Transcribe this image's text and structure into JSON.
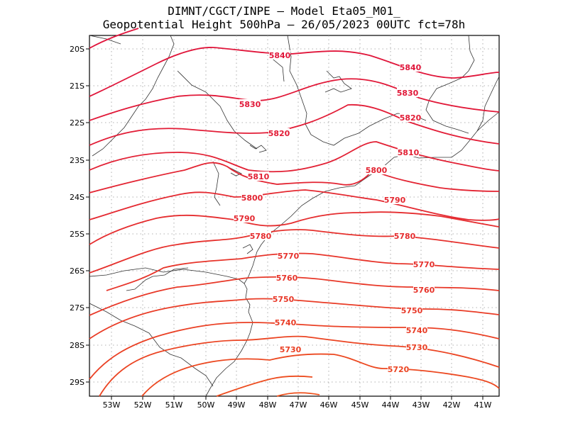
{
  "title": {
    "line1": "DIMNT/CGCT/INPE –  Model Eta05_M01_",
    "line2": "Geopotential Height 500hPa –  26/05/2023 00UTC fct=78h"
  },
  "map": {
    "lon_range": [
      -53.6,
      -40.5
    ],
    "lat_range": [
      -29.4,
      -19.6
    ],
    "lon_ticks": [
      "53W",
      "52W",
      "51W",
      "50W",
      "49W",
      "48W",
      "47W",
      "46W",
      "45W",
      "44W",
      "43W",
      "42W",
      "41W"
    ],
    "lat_ticks": [
      "20S",
      "21S",
      "22S",
      "23S",
      "24S",
      "25S",
      "26S",
      "27S",
      "28S",
      "29S"
    ],
    "contour_labels": [
      "5840",
      "5840",
      "5830",
      "5830",
      "5820",
      "5820",
      "5810",
      "5810",
      "5800",
      "5800",
      "5790",
      "5790",
      "5780",
      "5780",
      "5770",
      "5770",
      "5760",
      "5760",
      "5750",
      "5750",
      "5740",
      "5740",
      "5730",
      "5730",
      "5720"
    ]
  }
}
